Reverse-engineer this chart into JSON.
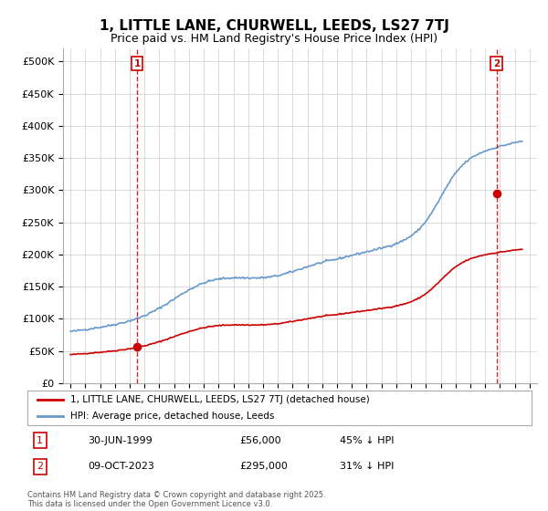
{
  "title": "1, LITTLE LANE, CHURWELL, LEEDS, LS27 7TJ",
  "subtitle": "Price paid vs. HM Land Registry's House Price Index (HPI)",
  "title_fontsize": 11,
  "subtitle_fontsize": 9,
  "background_color": "#ffffff",
  "grid_color": "#cccccc",
  "ylim": [
    0,
    520000
  ],
  "ytick_labels": [
    "£0",
    "£50K",
    "£100K",
    "£150K",
    "£200K",
    "£250K",
    "£300K",
    "£350K",
    "£400K",
    "£450K",
    "£500K"
  ],
  "xlim_start": 1994.5,
  "xlim_end": 2026.5,
  "purchase_dates": [
    1999.5,
    2023.77
  ],
  "purchase_prices": [
    56000,
    295000
  ],
  "purchase_labels": [
    "1",
    "2"
  ],
  "red_line_color": "#cc0000",
  "blue_line_color": "#6699cc",
  "marker_color": "#cc0000",
  "dashed_line_color": "#cc0000",
  "legend_label_red": "1, LITTLE LANE, CHURWELL, LEEDS, LS27 7TJ (detached house)",
  "legend_label_blue": "HPI: Average price, detached house, Leeds",
  "transaction_1_date": "30-JUN-1999",
  "transaction_1_price": "£56,000",
  "transaction_1_hpi": "45% ↓ HPI",
  "transaction_2_date": "09-OCT-2023",
  "transaction_2_price": "£295,000",
  "transaction_2_hpi": "31% ↓ HPI",
  "footer_text": "Contains HM Land Registry data © Crown copyright and database right 2025.\nThis data is licensed under the Open Government Licence v3.0."
}
